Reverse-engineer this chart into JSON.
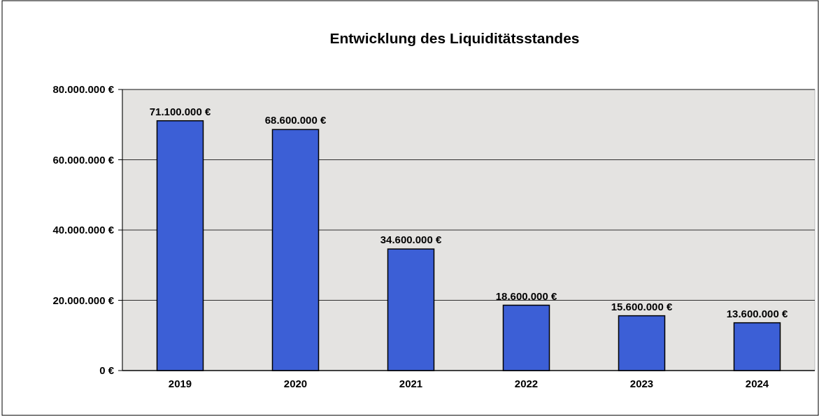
{
  "chart_data": {
    "type": "bar",
    "title": "Entwicklung des Liquiditätsstandes",
    "categories": [
      "2019",
      "2020",
      "2021",
      "2022",
      "2023",
      "2024"
    ],
    "values": [
      71100000,
      68600000,
      34600000,
      18600000,
      15600000,
      13600000
    ],
    "value_labels": [
      "71.100.000 €",
      "68.600.000 €",
      "34.600.000 €",
      "18.600.000 €",
      "15.600.000 €",
      "13.600.000 €"
    ],
    "color": "#3c5fd6",
    "ylim": [
      0,
      80000000
    ],
    "yticks": [
      {
        "value": 0,
        "label": "0 €"
      },
      {
        "value": 20000000,
        "label": "20.000.000 €"
      },
      {
        "value": 40000000,
        "label": "40.000.000 €"
      },
      {
        "value": 60000000,
        "label": "60.000.000 €"
      },
      {
        "value": 80000000,
        "label": "80.000.000 €"
      }
    ],
    "grid": "y",
    "legend": false
  }
}
